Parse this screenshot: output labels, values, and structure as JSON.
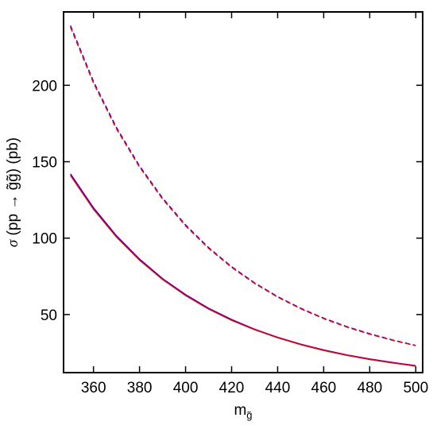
{
  "chart_data": {
    "type": "line",
    "xlabel": {
      "base": "m",
      "sub": "g̃"
    },
    "ylabel": {
      "sym": "σ",
      "text": " (pp → g̃g̃) (pb)"
    },
    "xlim": [
      347,
      503
    ],
    "ylim": [
      12,
      248
    ],
    "xticks": [
      360,
      380,
      400,
      420,
      440,
      460,
      480,
      500
    ],
    "yticks": [
      50,
      100,
      150,
      200
    ],
    "grid": false,
    "legend": "none",
    "series": [
      {
        "color": "#0000ff",
        "dash": "none",
        "x": [
          350,
          360,
          370,
          380,
          390,
          400,
          410,
          420,
          430,
          440,
          450,
          460,
          470,
          480,
          490,
          500
        ],
        "y": [
          142,
          119.8,
          101.5,
          86.3,
          73.5,
          63.0,
          54.1,
          46.7,
          40.4,
          35.1,
          30.6,
          26.8,
          23.6,
          20.9,
          18.6,
          16.5
        ]
      },
      {
        "color": "#ff0000",
        "dash": "none",
        "x": [
          350,
          360,
          370,
          380,
          390,
          400,
          410,
          420,
          430,
          440,
          450,
          460,
          470,
          480,
          490,
          500
        ],
        "y": [
          141,
          118.9,
          100.7,
          85.6,
          72.9,
          62.4,
          53.6,
          46.2,
          40.0,
          34.8,
          30.3,
          26.5,
          23.3,
          20.6,
          18.3,
          16.2
        ]
      },
      {
        "color": "#0000ff",
        "dash": "6,4",
        "x": [
          350,
          360,
          370,
          380,
          390,
          400,
          410,
          420,
          430,
          440,
          450,
          460,
          470,
          480,
          490,
          500
        ],
        "y": [
          239,
          202.4,
          172.3,
          147.2,
          126.2,
          108.6,
          93.8,
          81.3,
          70.7,
          61.7,
          54.1,
          47.6,
          42.1,
          37.4,
          33.3,
          29.8
        ]
      },
      {
        "color": "#ff0000",
        "dash": "6,4",
        "x": [
          350,
          360,
          370,
          380,
          390,
          400,
          410,
          420,
          430,
          440,
          450,
          460,
          470,
          480,
          490,
          500
        ],
        "y": [
          238,
          201.5,
          171.5,
          146.5,
          125.6,
          108.0,
          93.3,
          80.9,
          70.3,
          61.4,
          53.8,
          47.3,
          41.8,
          37.1,
          33.1,
          29.6
        ]
      }
    ]
  }
}
